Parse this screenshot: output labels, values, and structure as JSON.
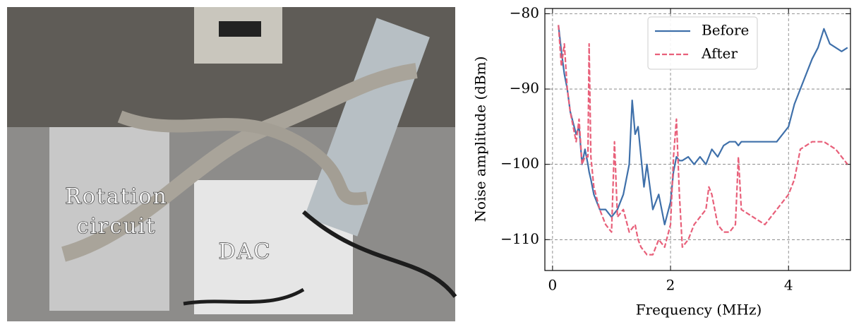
{
  "photo": {
    "rotation_label": [
      "Rotation",
      "circuit"
    ],
    "dac_label": "DAC"
  },
  "chart_data": {
    "type": "line",
    "xlabel": "Frequency (MHz)",
    "ylabel": "Noise amplitude (dBm)",
    "x": [
      0.1,
      0.15,
      0.2,
      0.25,
      0.3,
      0.4,
      0.45,
      0.5,
      0.55,
      0.6,
      0.62,
      0.65,
      0.7,
      0.8,
      0.9,
      1.0,
      1.05,
      1.1,
      1.2,
      1.3,
      1.35,
      1.4,
      1.45,
      1.5,
      1.55,
      1.6,
      1.7,
      1.8,
      1.9,
      2.0,
      2.05,
      2.1,
      2.15,
      2.2,
      2.3,
      2.4,
      2.5,
      2.6,
      2.65,
      2.7,
      2.8,
      2.9,
      3.0,
      3.1,
      3.15,
      3.2,
      3.4,
      3.6,
      3.8,
      4.0,
      4.1,
      4.2,
      4.3,
      4.4,
      4.5,
      4.6,
      4.7,
      4.8,
      4.9,
      5.0
    ],
    "series": [
      {
        "name": "Before",
        "color": "#3f70aa",
        "dash": false,
        "values": [
          -81.5,
          -85,
          -88,
          -90,
          -93,
          -96,
          -95,
          -100,
          -98,
          -100,
          -101,
          -102,
          -104,
          -106,
          -106,
          -107,
          -106.5,
          -106,
          -104,
          -100,
          -91.5,
          -96,
          -95,
          -99,
          -103,
          -100,
          -106,
          -104,
          -108,
          -105,
          -101,
          -99,
          -99.5,
          -99.5,
          -99,
          -100,
          -99,
          -100,
          -99,
          -98,
          -99,
          -97.5,
          -97,
          -97,
          -97.5,
          -97,
          -97,
          -97,
          -97,
          -95,
          -92,
          -90,
          -88,
          -86,
          -84.5,
          -82,
          -84,
          -84.5,
          -85,
          -84.5
        ]
      },
      {
        "name": "After",
        "color": "#e8607a",
        "dash": true,
        "values": [
          -81.5,
          -87,
          -84,
          -90,
          -93,
          -97,
          -94,
          -100,
          -99,
          -99,
          -84,
          -99,
          -103,
          -106,
          -108,
          -109,
          -97,
          -107,
          -106,
          -109,
          -108.5,
          -108,
          -110,
          -111,
          -111.5,
          -112,
          -112,
          -110,
          -111,
          -108,
          -99,
          -94,
          -104,
          -111,
          -110,
          -108,
          -107,
          -106,
          -103,
          -104,
          -108,
          -109,
          -109,
          -108,
          -99,
          -106,
          -107,
          -108,
          -106,
          -104,
          -102,
          -98,
          -97.5,
          -97,
          -97,
          -97,
          -97.5,
          -98,
          -99,
          -100
        ]
      }
    ],
    "xlim": [
      -0.13,
      5.05
    ],
    "ylim": [
      -114.1,
      -79.3
    ],
    "xticks": [
      0,
      2,
      4
    ],
    "yticks": [
      {
        "value": -80,
        "label": "−80"
      },
      {
        "value": -90,
        "label": "−90"
      },
      {
        "value": -100,
        "label": "−100"
      },
      {
        "value": -110,
        "label": "−110"
      }
    ],
    "grid": true,
    "legend": "upper center"
  }
}
